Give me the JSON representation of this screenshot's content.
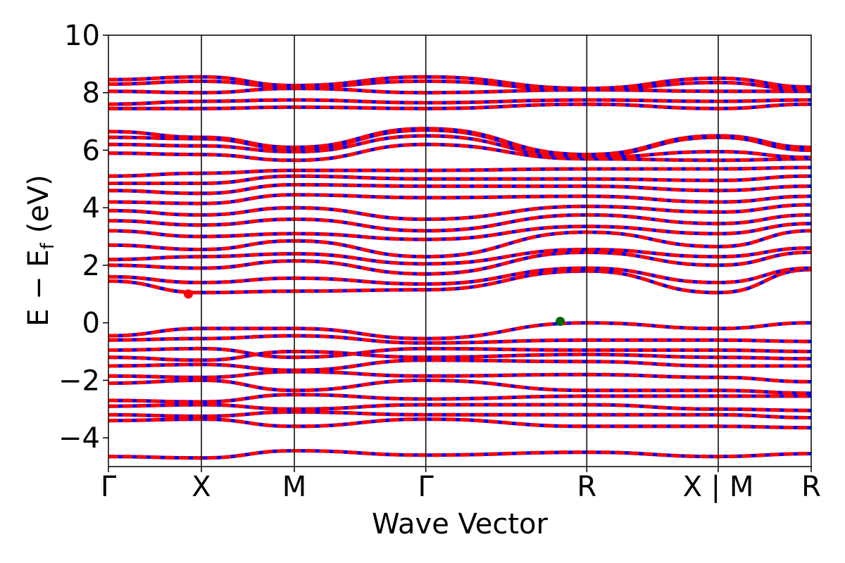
{
  "chart_data": {
    "type": "line",
    "title": "",
    "xlabel": "Wave Vector",
    "ylabel_main": "E − E",
    "ylabel_sub": "f",
    "ylabel_unit": "(eV)",
    "ylim": [
      -5,
      10
    ],
    "yticks": [
      -4,
      -2,
      0,
      2,
      4,
      6,
      8,
      10
    ],
    "ytick_labels": [
      "−4",
      "−2",
      "0",
      "2",
      "4",
      "6",
      "8",
      "10"
    ],
    "kpath": [
      {
        "label": "Γ",
        "pos": 0.0
      },
      {
        "label": "X",
        "pos": 0.5
      },
      {
        "label": "M",
        "pos": 1.0
      },
      {
        "label": "Γ",
        "pos": 1.707
      },
      {
        "label": "R",
        "pos": 2.573
      },
      {
        "label": "X | M",
        "pos": 3.28
      },
      {
        "label": "R",
        "pos": 3.78
      }
    ],
    "band_colors": {
      "dashed": "#ff0000",
      "underlay": "#0000ff"
    },
    "markers": [
      {
        "name": "CBM",
        "x": 0.43,
        "y": 1.0,
        "color": "#ff0000"
      },
      {
        "name": "VBM",
        "x": 2.43,
        "y": 0.05,
        "color": "#006400"
      }
    ],
    "series": [
      {
        "values": [
          -4.65,
          -4.7,
          -4.45,
          -4.6,
          -4.5,
          -4.65,
          -4.55
        ]
      },
      {
        "values": [
          -3.4,
          -3.35,
          -3.6,
          -3.35,
          -3.6,
          -3.6,
          -3.65
        ]
      },
      {
        "values": [
          -3.2,
          -3.25,
          -3.1,
          -3.2,
          -3.2,
          -3.2,
          -3.3
        ]
      },
      {
        "values": [
          -2.9,
          -2.85,
          -3.0,
          -2.85,
          -2.85,
          -3.0,
          -3.05
        ]
      },
      {
        "values": [
          -2.7,
          -2.75,
          -2.5,
          -2.65,
          -2.55,
          -2.55,
          -2.55
        ]
      },
      {
        "values": [
          -2.1,
          -2.0,
          -2.35,
          -2.0,
          -2.35,
          -2.35,
          -2.45
        ]
      },
      {
        "values": [
          -1.85,
          -1.9,
          -1.7,
          -1.85,
          -1.8,
          -1.9,
          -2.05
        ]
      },
      {
        "values": [
          -1.5,
          -1.45,
          -1.65,
          -1.3,
          -1.35,
          -1.5,
          -1.5
        ]
      },
      {
        "values": [
          -1.2,
          -1.3,
          -1.0,
          -1.2,
          -1.1,
          -1.2,
          -1.25
        ]
      },
      {
        "values": [
          -0.95,
          -0.9,
          -1.2,
          -0.9,
          -0.95,
          -0.95,
          -1.0
        ]
      },
      {
        "values": [
          -0.6,
          -0.55,
          -0.45,
          -0.7,
          -0.6,
          -0.6,
          -0.65
        ]
      },
      {
        "values": [
          -0.45,
          -0.2,
          -0.2,
          -0.55,
          0.0,
          -0.2,
          0.0
        ]
      },
      {
        "values": [
          1.45,
          1.05,
          1.1,
          1.15,
          1.8,
          1.05,
          1.85
        ]
      },
      {
        "values": [
          1.6,
          1.4,
          1.55,
          1.35,
          1.9,
          1.4,
          1.9
        ]
      },
      {
        "values": [
          2.0,
          1.9,
          2.15,
          1.7,
          2.45,
          2.0,
          2.45
        ]
      },
      {
        "values": [
          2.2,
          2.3,
          2.4,
          2.05,
          2.55,
          2.3,
          2.6
        ]
      },
      {
        "values": [
          2.7,
          2.55,
          2.85,
          2.3,
          3.15,
          2.65,
          3.2
        ]
      },
      {
        "values": [
          3.2,
          3.0,
          3.1,
          2.9,
          3.35,
          3.1,
          3.45
        ]
      },
      {
        "values": [
          3.55,
          3.4,
          3.6,
          3.2,
          3.75,
          3.45,
          3.75
        ]
      },
      {
        "values": [
          3.9,
          3.75,
          4.0,
          3.6,
          4.05,
          3.85,
          4.1
        ]
      },
      {
        "values": [
          4.2,
          4.15,
          4.45,
          4.35,
          4.4,
          4.2,
          4.4
        ]
      },
      {
        "values": [
          4.6,
          4.5,
          4.8,
          4.75,
          4.75,
          4.6,
          4.75
        ]
      },
      {
        "values": [
          4.85,
          4.85,
          5.1,
          5.0,
          5.0,
          4.95,
          5.1
        ]
      },
      {
        "values": [
          5.1,
          5.2,
          5.3,
          5.3,
          5.35,
          5.35,
          5.4
        ]
      },
      {
        "values": [
          5.9,
          5.85,
          5.65,
          6.2,
          5.7,
          5.65,
          5.7
        ]
      },
      {
        "values": [
          6.2,
          6.15,
          5.95,
          6.5,
          5.75,
          5.95,
          5.75
        ]
      },
      {
        "values": [
          6.45,
          6.4,
          6.05,
          6.7,
          5.8,
          6.45,
          6.0
        ]
      },
      {
        "values": [
          6.65,
          6.45,
          6.1,
          6.75,
          5.85,
          6.5,
          6.1
        ]
      },
      {
        "values": [
          7.45,
          7.45,
          7.5,
          7.45,
          7.6,
          7.45,
          7.6
        ]
      },
      {
        "values": [
          7.6,
          7.7,
          7.75,
          7.65,
          7.75,
          7.7,
          7.75
        ]
      },
      {
        "values": [
          8.05,
          8.0,
          8.15,
          8.0,
          8.1,
          8.05,
          8.05
        ]
      },
      {
        "values": [
          8.3,
          8.4,
          8.2,
          8.4,
          8.1,
          8.35,
          8.1
        ]
      },
      {
        "values": [
          8.45,
          8.55,
          8.25,
          8.55,
          8.15,
          8.5,
          8.2
        ]
      }
    ]
  }
}
